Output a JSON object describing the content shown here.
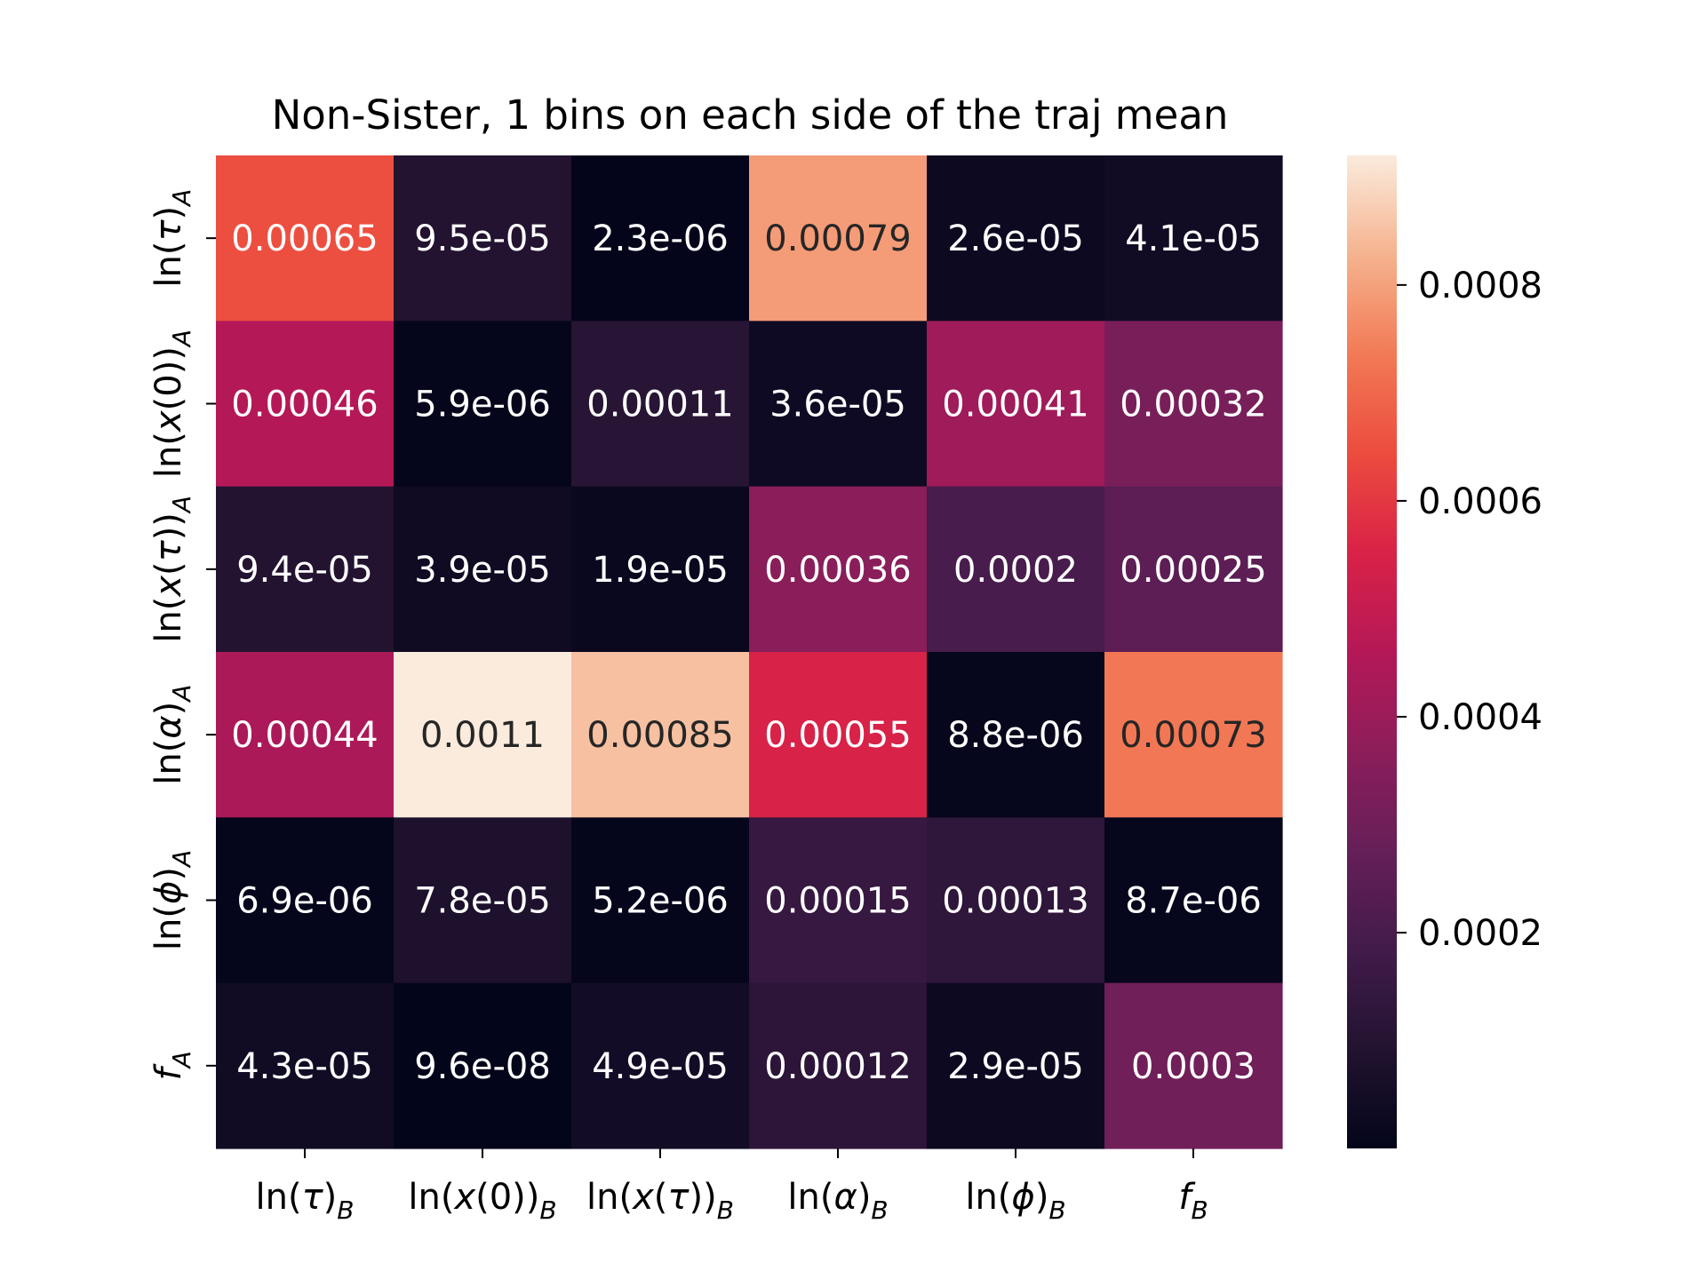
{
  "chart_data": {
    "type": "heatmap",
    "title": "Non-Sister, 1 bins on each side of the traj mean",
    "x_labels": [
      {
        "base": "ln(",
        "sym": "τ",
        "close": ")",
        "sub": "B"
      },
      {
        "base": "ln(",
        "sym": "x",
        "close": "(0))",
        "sub": "B"
      },
      {
        "base": "ln(",
        "sym": "x",
        "close": "(",
        "sym2": "τ",
        "close2": "))",
        "sub": "B"
      },
      {
        "base": "ln(",
        "sym": "α",
        "close": ")",
        "sub": "B"
      },
      {
        "base": "ln(",
        "sym": "ϕ",
        "close": ")",
        "sub": "B"
      },
      {
        "base": "",
        "sym": "f",
        "close": "",
        "sub": "B"
      }
    ],
    "y_labels": [
      {
        "base": "ln(",
        "sym": "τ",
        "close": ")",
        "sub": "A"
      },
      {
        "base": "ln(",
        "sym": "x",
        "close": "(0))",
        "sub": "A"
      },
      {
        "base": "ln(",
        "sym": "x",
        "close": "(",
        "sym2": "τ",
        "close2": "))",
        "sub": "A"
      },
      {
        "base": "ln(",
        "sym": "α",
        "close": ")",
        "sub": "A"
      },
      {
        "base": "ln(",
        "sym": "ϕ",
        "close": ")",
        "sub": "A"
      },
      {
        "base": "",
        "sym": "f",
        "close": "",
        "sub": "A"
      }
    ],
    "values": [
      [
        0.00065,
        9.5e-05,
        2.3e-06,
        0.00079,
        2.6e-05,
        4.1e-05
      ],
      [
        0.00046,
        5.9e-06,
        0.00011,
        3.6e-05,
        0.00041,
        0.00032
      ],
      [
        9.4e-05,
        3.9e-05,
        1.9e-05,
        0.00036,
        0.0002,
        0.00025
      ],
      [
        0.00044,
        0.0011,
        0.00085,
        0.00055,
        8.8e-06,
        0.00073
      ],
      [
        6.9e-06,
        7.8e-05,
        5.2e-06,
        0.00015,
        0.00013,
        8.7e-06
      ],
      [
        4.3e-05,
        9.6e-08,
        4.9e-05,
        0.00012,
        2.9e-05,
        0.0003
      ]
    ],
    "annotations": [
      [
        "0.00065",
        "9.5e-05",
        "2.3e-06",
        "0.00079",
        "2.6e-05",
        "4.1e-05"
      ],
      [
        "0.00046",
        "5.9e-06",
        "0.00011",
        "3.6e-05",
        "0.00041",
        "0.00032"
      ],
      [
        "9.4e-05",
        "3.9e-05",
        "1.9e-05",
        "0.00036",
        "0.0002",
        "0.00025"
      ],
      [
        "0.00044",
        "0.0011",
        "0.00085",
        "0.00055",
        "8.8e-06",
        "0.00073"
      ],
      [
        "6.9e-06",
        "7.8e-05",
        "5.2e-06",
        "0.00015",
        "0.00013",
        "8.7e-06"
      ],
      [
        "4.3e-05",
        "9.6e-08",
        "4.9e-05",
        "0.00012",
        "2.9e-05",
        "0.0003"
      ]
    ],
    "colorscale": "rocket",
    "color_range": [
      1e-07,
      0.00092
    ],
    "colorbar_ticks": [
      0.0002,
      0.0004,
      0.0006,
      0.0008
    ],
    "colorbar_tick_labels": [
      "0.0002",
      "0.0004",
      "0.0006",
      "0.0008"
    ],
    "grid": false
  }
}
